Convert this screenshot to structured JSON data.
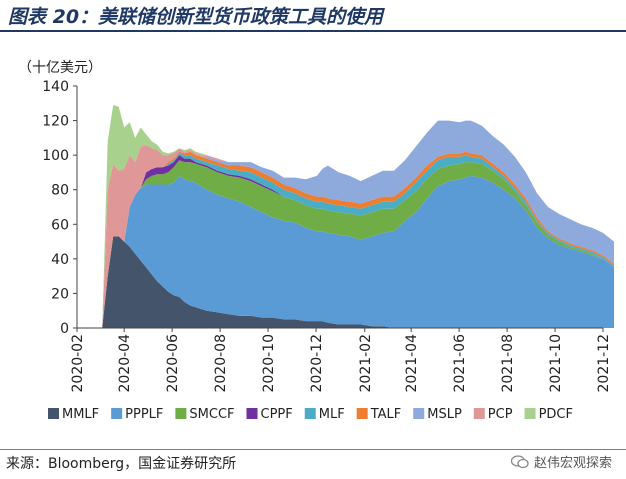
{
  "header": {
    "title": "图表 20：美联储创新型货币政策工具的使用"
  },
  "footer": {
    "source": "来源：Bloomberg，国金证券研究所",
    "watermark": "赵伟宏观探索"
  },
  "chart_data": {
    "type": "area",
    "stacked": true,
    "unit_label": "（十亿美元）",
    "ylim": [
      0,
      140
    ],
    "yticks": [
      0,
      20,
      40,
      60,
      80,
      100,
      120,
      140
    ],
    "xlim": [
      "2020-02",
      "2021-12"
    ],
    "xticks": [
      "2020-02",
      "2020-04",
      "2020-06",
      "2020-08",
      "2020-10",
      "2020-12",
      "2021-02",
      "2021-04",
      "2021-06",
      "2021-08",
      "2021-10",
      "2021-12"
    ],
    "x": [
      "2020-03-04",
      "2020-03-11",
      "2020-03-18",
      "2020-03-25",
      "2020-04-01",
      "2020-04-08",
      "2020-04-15",
      "2020-04-22",
      "2020-04-29",
      "2020-05-06",
      "2020-05-13",
      "2020-05-20",
      "2020-05-27",
      "2020-06-03",
      "2020-06-10",
      "2020-06-17",
      "2020-06-24",
      "2020-07-01",
      "2020-07-08",
      "2020-07-15",
      "2020-07-29",
      "2020-08-12",
      "2020-08-26",
      "2020-09-09",
      "2020-09-23",
      "2020-10-07",
      "2020-10-21",
      "2020-11-04",
      "2020-11-18",
      "2020-12-02",
      "2020-12-09",
      "2020-12-16",
      "2020-12-30",
      "2021-01-13",
      "2021-01-27",
      "2021-02-10",
      "2021-02-24",
      "2021-03-10",
      "2021-03-24",
      "2021-04-07",
      "2021-04-21",
      "2021-05-05",
      "2021-05-19",
      "2021-06-02",
      "2021-06-09",
      "2021-06-16",
      "2021-06-30",
      "2021-07-14",
      "2021-07-28",
      "2021-08-11",
      "2021-08-25",
      "2021-09-08",
      "2021-09-22",
      "2021-10-06",
      "2021-10-20",
      "2021-11-03",
      "2021-11-17",
      "2021-12-01",
      "2021-12-15"
    ],
    "legend_position": "bottom",
    "series": [
      {
        "name": "MMLF",
        "color": "#44546a",
        "values": [
          0,
          30,
          53,
          53,
          50,
          47,
          43,
          39,
          35,
          31,
          27,
          24,
          21,
          19,
          18,
          15,
          13,
          12,
          11,
          10,
          9,
          8,
          7,
          7,
          6,
          6,
          5,
          5,
          4,
          4,
          4,
          3,
          2,
          2,
          2,
          1,
          1,
          0,
          0,
          0,
          0,
          0,
          0,
          0,
          0,
          0,
          0,
          0,
          0,
          0,
          0,
          0,
          0,
          0,
          0,
          0,
          0,
          0,
          0
        ]
      },
      {
        "name": "PPPLF",
        "color": "#5b9bd5",
        "values": [
          0,
          0,
          0,
          0,
          0,
          23,
          34,
          42,
          48,
          52,
          56,
          59,
          62,
          65,
          70,
          71,
          72,
          72,
          71,
          70,
          68,
          67,
          66,
          63,
          61,
          58,
          57,
          56,
          54,
          52,
          52,
          52,
          52,
          51,
          49,
          52,
          54,
          56,
          62,
          67,
          75,
          82,
          85,
          86,
          87,
          88,
          87,
          84,
          80,
          75,
          68,
          58,
          52,
          48,
          46,
          44,
          42,
          40,
          35
        ]
      },
      {
        "name": "SMCCF",
        "color": "#70ad47",
        "values": [
          0,
          0,
          0,
          0,
          0,
          0,
          0,
          0,
          3,
          5,
          6,
          6,
          7,
          9,
          9,
          10,
          11,
          11,
          12,
          13,
          13,
          13,
          14,
          15,
          15,
          15,
          14,
          13,
          13,
          13,
          13,
          13,
          13,
          13,
          14,
          14,
          14,
          13,
          12,
          12,
          11,
          10,
          9,
          9,
          9,
          8,
          8,
          7,
          6,
          4,
          3,
          3,
          2,
          2,
          1,
          1,
          1,
          0,
          0
        ]
      },
      {
        "name": "CPPF",
        "color": "#7030a0",
        "values": [
          0,
          0,
          0,
          0,
          0,
          0,
          0,
          0,
          4,
          4,
          4,
          4,
          4,
          3,
          3,
          2,
          2,
          1,
          1,
          1,
          1,
          1,
          1,
          1,
          1,
          1,
          0,
          0,
          0,
          0,
          0,
          0,
          0,
          0,
          0,
          0,
          0,
          0,
          0,
          0,
          0,
          0,
          0,
          0,
          0,
          0,
          0,
          0,
          0,
          0,
          0,
          0,
          0,
          0,
          0,
          0,
          0,
          0,
          0
        ]
      },
      {
        "name": "MLF",
        "color": "#4bacc6",
        "values": [
          0,
          0,
          0,
          0,
          0,
          0,
          0,
          0,
          0,
          0,
          0,
          0,
          1,
          1,
          1,
          2,
          2,
          2,
          2,
          2,
          3,
          3,
          3,
          4,
          4,
          4,
          4,
          4,
          4,
          4,
          4,
          4,
          4,
          4,
          4,
          4,
          4,
          4,
          4,
          5,
          5,
          5,
          5,
          4,
          4,
          3,
          3,
          2,
          2,
          2,
          2,
          1,
          1,
          1,
          1,
          1,
          1,
          1,
          1
        ]
      },
      {
        "name": "TALF",
        "color": "#ed7d31",
        "values": [
          0,
          0,
          0,
          0,
          0,
          0,
          0,
          0,
          0,
          0,
          0,
          0,
          1,
          1,
          1,
          1,
          2,
          2,
          2,
          2,
          2,
          2,
          3,
          3,
          3,
          3,
          3,
          3,
          3,
          3,
          3,
          3,
          3,
          3,
          3,
          3,
          3,
          3,
          3,
          3,
          3,
          2,
          2,
          2,
          2,
          2,
          2,
          2,
          2,
          2,
          2,
          2,
          1,
          1,
          1,
          1,
          1,
          1,
          1
        ]
      },
      {
        "name": "MSLP",
        "color": "#8ea9db",
        "values": [
          0,
          0,
          0,
          0,
          0,
          0,
          0,
          0,
          0,
          0,
          0,
          0,
          0,
          0,
          0,
          0,
          0,
          0,
          0,
          1,
          1,
          2,
          2,
          3,
          3,
          4,
          4,
          6,
          8,
          12,
          16,
          19,
          16,
          15,
          13,
          14,
          15,
          15,
          16,
          18,
          19,
          21,
          19,
          18,
          18,
          19,
          17,
          16,
          16,
          16,
          15,
          14,
          14,
          14,
          14,
          13,
          13,
          13,
          13
        ]
      },
      {
        "name": "PCP",
        "color": "#e09797",
        "values": [
          0,
          50,
          42,
          38,
          42,
          30,
          19,
          24,
          16,
          12,
          10,
          7,
          4,
          3,
          2,
          1,
          1,
          1,
          1,
          1,
          1,
          0,
          0,
          0,
          0,
          0,
          0,
          0,
          0,
          0,
          0,
          0,
          0,
          0,
          0,
          0,
          0,
          0,
          0,
          0,
          0,
          0,
          0,
          0,
          0,
          0,
          0,
          0,
          0,
          0,
          0,
          0,
          0,
          0,
          0,
          0,
          0,
          0,
          0
        ]
      },
      {
        "name": "PDCF",
        "color": "#a9d18e",
        "values": [
          0,
          28,
          34,
          37,
          24,
          19,
          14,
          11,
          6,
          4,
          3,
          2,
          1,
          1,
          0,
          1,
          1,
          1,
          1,
          0,
          0,
          0,
          0,
          0,
          0,
          0,
          0,
          0,
          0,
          0,
          0,
          0,
          0,
          0,
          0,
          0,
          0,
          0,
          0,
          0,
          0,
          0,
          0,
          0,
          0,
          0,
          0,
          0,
          0,
          0,
          0,
          0,
          0,
          0,
          0,
          0,
          0,
          0,
          0
        ]
      }
    ]
  }
}
